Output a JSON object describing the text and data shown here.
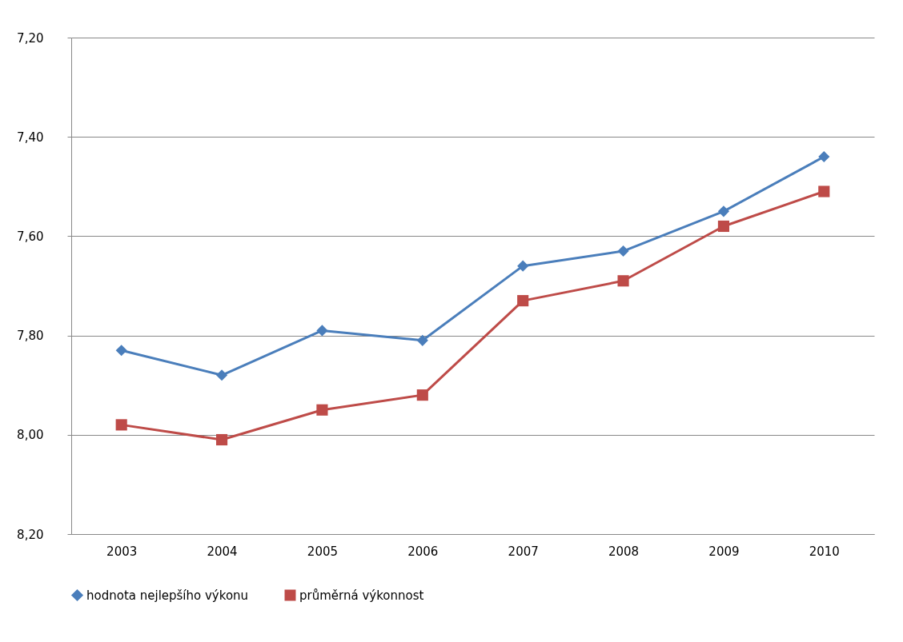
{
  "chart_data": {
    "type": "line",
    "categories": [
      "2003",
      "2004",
      "2005",
      "2006",
      "2007",
      "2008",
      "2009",
      "2010"
    ],
    "series": [
      {
        "name": "hodnota nejlepšího výkonu",
        "color": "#4a7ebb",
        "marker": "diamond",
        "values": [
          7.83,
          7.88,
          7.79,
          7.81,
          7.66,
          7.63,
          7.55,
          7.44
        ]
      },
      {
        "name": "průměrná výkonnost",
        "color": "#be4b48",
        "marker": "square",
        "values": [
          7.98,
          8.01,
          7.95,
          7.92,
          7.73,
          7.69,
          7.58,
          7.51
        ]
      }
    ],
    "ylim": [
      8.2,
      7.2
    ],
    "yticks": [
      {
        "value": 8.2,
        "label": "8,20"
      },
      {
        "value": 8.0,
        "label": "8,00"
      },
      {
        "value": 7.8,
        "label": "7,80"
      },
      {
        "value": 7.6,
        "label": "7,60"
      },
      {
        "value": 7.4,
        "label": "7,40"
      },
      {
        "value": 7.2,
        "label": "7,20"
      }
    ],
    "grid": "y",
    "legend": "bottom",
    "line_style": "solid"
  }
}
